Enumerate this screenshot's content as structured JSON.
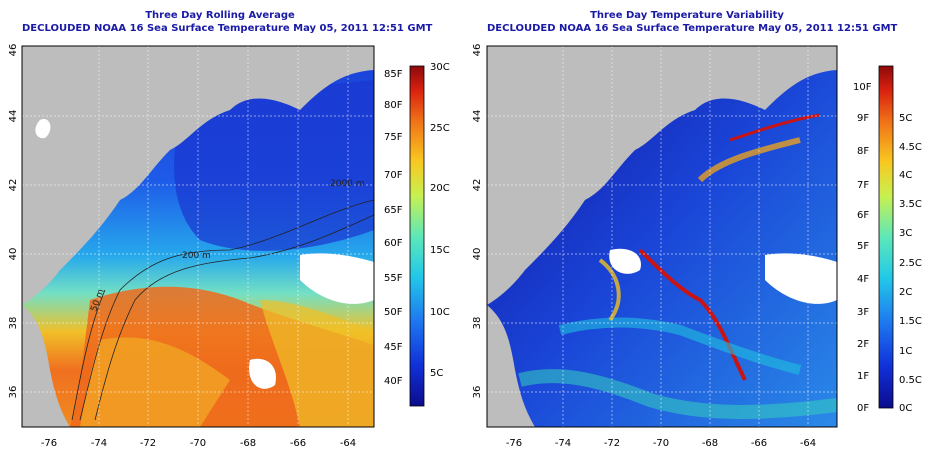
{
  "panels": [
    {
      "title": "Three Day Rolling Average",
      "subtitle": "DECLOUDED NOAA 16 Sea Surface Temperature May 05, 2011 12:51 GMT",
      "y_ticks": [
        "46",
        "44",
        "42",
        "40",
        "38",
        "36"
      ],
      "x_ticks": [
        "-76",
        "-74",
        "-72",
        "-70",
        "-68",
        "-66",
        "-64"
      ],
      "contour_labels": [
        "2000 m",
        "200 m",
        "50 m"
      ],
      "colorbar": {
        "left_labels": [
          "85F",
          "80F",
          "75F",
          "70F",
          "65F",
          "60F",
          "55F",
          "50F",
          "45F",
          "40F"
        ],
        "right_labels": [
          "30C",
          "25C",
          "20C",
          "15C",
          "10C",
          "5C"
        ]
      }
    },
    {
      "title": "Three Day Temperature Variability",
      "subtitle": "DECLOUDED NOAA 16 Sea Surface Temperature May 05, 2011 12:51 GMT",
      "y_ticks": [
        "46",
        "44",
        "42",
        "40",
        "38",
        "36"
      ],
      "x_ticks": [
        "-76",
        "-74",
        "-72",
        "-70",
        "-68",
        "-66",
        "-64"
      ],
      "colorbar": {
        "left_labels": [
          "10F",
          "9F",
          "8F",
          "7F",
          "6F",
          "5F",
          "4F",
          "3F",
          "2F",
          "1F",
          "0F"
        ],
        "right_labels": [
          "5C",
          "4.5C",
          "4C",
          "3.5C",
          "3C",
          "2.5C",
          "2C",
          "1.5C",
          "1C",
          "0.5C",
          "0C"
        ]
      }
    }
  ],
  "colors": {
    "land": "#bdbdbd",
    "title": "#1a1aa6",
    "sst_scale": [
      "#0c0c8c",
      "#1030d8",
      "#1e78f0",
      "#22c8e8",
      "#5ee8b8",
      "#c8f050",
      "#f8c820",
      "#f07018",
      "#d82010",
      "#8c0a0a"
    ]
  }
}
